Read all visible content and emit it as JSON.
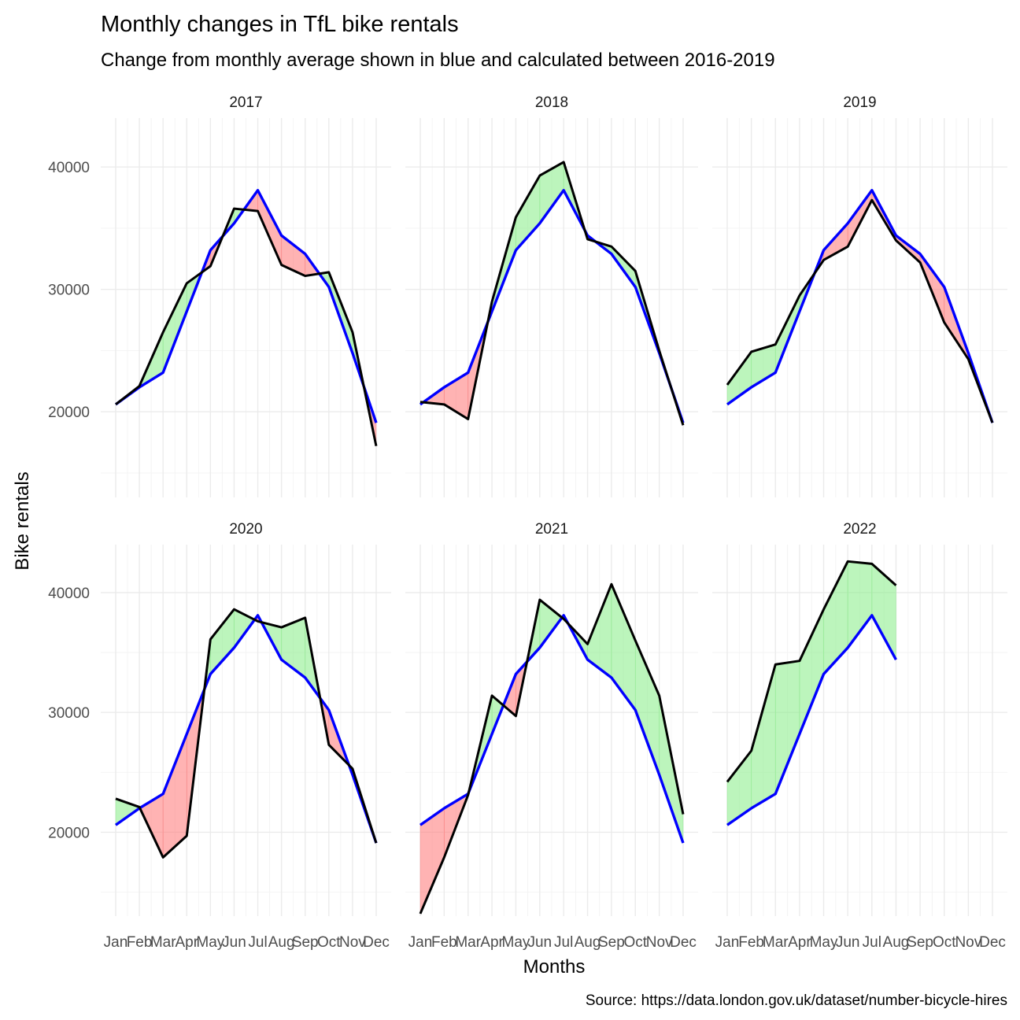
{
  "chart_data": {
    "type": "area",
    "title": "Monthly changes in TfL bike rentals",
    "subtitle": "Change from monthly average shown in blue and calculated between 2016-2019",
    "xlabel": "Months",
    "ylabel": "Bike rentals",
    "caption": "Source: https://data.london.gov.uk/dataset/number-bicycle-hires",
    "months": [
      "Jan",
      "Feb",
      "Mar",
      "Apr",
      "May",
      "Jun",
      "Jul",
      "Aug",
      "Sep",
      "Oct",
      "Nov",
      "Dec"
    ],
    "yticks": [
      20000,
      30000,
      40000
    ],
    "ylim": [
      13000,
      44000
    ],
    "grid": true,
    "colors": {
      "average_line": "#0000ff",
      "actual_line": "#000000",
      "above_average_fill": "#90ee90",
      "below_average_fill": "#ff8080"
    },
    "average": {
      "name": "Monthly average 2016-2019",
      "values": [
        20600,
        22000,
        23200,
        28200,
        33200,
        35400,
        38100,
        34400,
        32900,
        30200,
        24800,
        19100
      ]
    },
    "panels": [
      {
        "year": "2017",
        "values": [
          20600,
          22100,
          26500,
          30500,
          31900,
          36600,
          36400,
          32000,
          31100,
          31400,
          26500,
          17200
        ]
      },
      {
        "year": "2018",
        "values": [
          20800,
          20600,
          19400,
          29000,
          35900,
          39300,
          40400,
          34100,
          33500,
          31500,
          25000,
          18900
        ]
      },
      {
        "year": "2019",
        "values": [
          22200,
          24900,
          25500,
          29500,
          32400,
          33500,
          37300,
          34000,
          32200,
          27300,
          24300,
          19100
        ]
      },
      {
        "year": "2020",
        "values": [
          22800,
          22100,
          17900,
          19700,
          36100,
          38600,
          37600,
          37100,
          37900,
          27300,
          25300,
          19100
        ]
      },
      {
        "year": "2021",
        "values": [
          13200,
          17900,
          23100,
          31400,
          29700,
          39400,
          37800,
          35700,
          40700,
          36000,
          31400,
          21500
        ]
      },
      {
        "year": "2022",
        "values": [
          24200,
          26800,
          34000,
          34300,
          38600,
          42600,
          42400,
          40600,
          null,
          null,
          null,
          null
        ]
      }
    ]
  }
}
